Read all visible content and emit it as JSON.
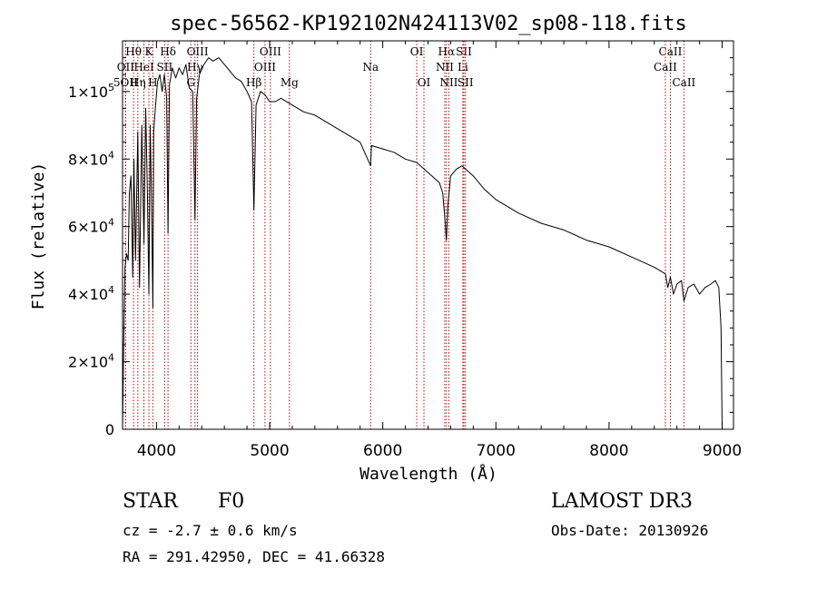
{
  "chart_data": {
    "type": "line",
    "title": "spec-56562-KP192102N424113V02_sp08-118.fits",
    "xlabel": "Wavelength (Å)",
    "ylabel": "Flux (relative)",
    "xlim": [
      3700,
      9100
    ],
    "ylim": [
      0,
      115000
    ],
    "x_ticks": [
      4000,
      5000,
      6000,
      7000,
      8000,
      9000
    ],
    "x_tick_labels": [
      "4000",
      "5000",
      "6000",
      "7000",
      "8000",
      "9000"
    ],
    "y_ticks": [
      0,
      20000,
      40000,
      60000,
      80000,
      100000
    ],
    "y_tick_mantissas": [
      "0",
      "2×10",
      "4×10",
      "6×10",
      "8×10",
      "1×10"
    ],
    "y_tick_exponents": [
      "",
      "4",
      "4",
      "4",
      "4",
      "5"
    ],
    "series": [
      {
        "name": "spectrum",
        "x": [
          3700,
          3710,
          3722,
          3735,
          3750,
          3760,
          3775,
          3790,
          3800,
          3815,
          3835,
          3850,
          3870,
          3889,
          3905,
          3920,
          3933,
          3945,
          3955,
          3968,
          3975,
          3990,
          4010,
          4030,
          4050,
          4070,
          4090,
          4102,
          4115,
          4140,
          4170,
          4200,
          4230,
          4260,
          4290,
          4320,
          4340,
          4355,
          4380,
          4420,
          4460,
          4500,
          4550,
          4600,
          4650,
          4700,
          4750,
          4800,
          4840,
          4861,
          4880,
          4920,
          4960,
          5000,
          5050,
          5100,
          5200,
          5300,
          5400,
          5500,
          5600,
          5700,
          5800,
          5893,
          5900,
          6000,
          6100,
          6200,
          6300,
          6400,
          6500,
          6530,
          6550,
          6563,
          6575,
          6600,
          6650,
          6700,
          6800,
          6900,
          7000,
          7200,
          7400,
          7600,
          7800,
          8000,
          8200,
          8400,
          8498,
          8520,
          8542,
          8570,
          8600,
          8640,
          8662,
          8700,
          8750,
          8800,
          8850,
          8900,
          8940,
          8970,
          8990,
          9000
        ],
        "values": [
          0,
          25000,
          48000,
          52000,
          50000,
          70000,
          75000,
          45000,
          80000,
          50000,
          88000,
          42000,
          90000,
          55000,
          95000,
          70000,
          40000,
          90000,
          70000,
          36000,
          88000,
          95000,
          103000,
          105000,
          100000,
          105000,
          98000,
          58000,
          102000,
          107000,
          104000,
          107000,
          105000,
          108000,
          101000,
          100000,
          62000,
          98000,
          105000,
          108000,
          110000,
          109000,
          110000,
          108000,
          106000,
          104000,
          103000,
          100000,
          97000,
          65000,
          96000,
          100000,
          99000,
          97000,
          97000,
          98000,
          96000,
          94000,
          93000,
          91000,
          89000,
          87000,
          85000,
          78000,
          84000,
          83000,
          82000,
          80000,
          79000,
          76000,
          73000,
          70000,
          62000,
          56000,
          66000,
          75000,
          77000,
          78000,
          75000,
          71000,
          68000,
          64000,
          61000,
          59000,
          56000,
          54000,
          51000,
          48000,
          46000,
          42000,
          45000,
          40000,
          43000,
          44000,
          38000,
          42000,
          43000,
          40000,
          42000,
          43000,
          44000,
          42000,
          30000,
          0
        ]
      }
    ],
    "line_markers": [
      {
        "label": "Hθ",
        "x": 3797,
        "row": 0
      },
      {
        "label": "OII",
        "x": 3727,
        "row": 1
      },
      {
        "label": "5OII",
        "x": 3727,
        "row": 2
      },
      {
        "label": "Hη",
        "x": 3835,
        "row": 2
      },
      {
        "label": "HeI",
        "x": 3889,
        "row": 1
      },
      {
        "label": "K",
        "x": 3933,
        "row": 0
      },
      {
        "label": "H",
        "x": 3968,
        "row": 2
      },
      {
        "label": "Hδ",
        "x": 4102,
        "row": 0
      },
      {
        "label": "SII",
        "x": 4072,
        "row": 1
      },
      {
        "label": "OIII",
        "x": 4363,
        "row": 0
      },
      {
        "label": "Hγ",
        "x": 4340,
        "row": 1
      },
      {
        "label": "G",
        "x": 4304,
        "row": 2
      },
      {
        "label": "OIII",
        "x": 5007,
        "row": 0
      },
      {
        "label": "OIII",
        "x": 4959,
        "row": 1
      },
      {
        "label": "Hβ",
        "x": 4861,
        "row": 2
      },
      {
        "label": "Mg",
        "x": 5175,
        "row": 2
      },
      {
        "label": "Na",
        "x": 5893,
        "row": 1
      },
      {
        "label": "OI",
        "x": 6300,
        "row": 0
      },
      {
        "label": "OI",
        "x": 6364,
        "row": 2
      },
      {
        "label": "Hα",
        "x": 6563,
        "row": 0
      },
      {
        "label": "SII",
        "x": 6717,
        "row": 0
      },
      {
        "label": "NII",
        "x": 6548,
        "row": 1
      },
      {
        "label": "Li",
        "x": 6708,
        "row": 1
      },
      {
        "label": "NII",
        "x": 6584,
        "row": 2
      },
      {
        "label": "SII",
        "x": 6731,
        "row": 2
      },
      {
        "label": "CaII",
        "x": 8542,
        "row": 0
      },
      {
        "label": "CaII",
        "x": 8498,
        "row": 1
      },
      {
        "label": "CaII",
        "x": 8662,
        "row": 2
      }
    ]
  },
  "info": {
    "object_class": "STAR",
    "subclass": "F0",
    "survey": "LAMOST DR3",
    "redshift": "cz = -2.7 ± 0.6 km/s",
    "obs_date": "Obs-Date: 20130926",
    "coords": "RA = 291.42950, DEC =  41.66328"
  },
  "colors": {
    "spectrum": "#000000",
    "marker": "#b01010"
  }
}
